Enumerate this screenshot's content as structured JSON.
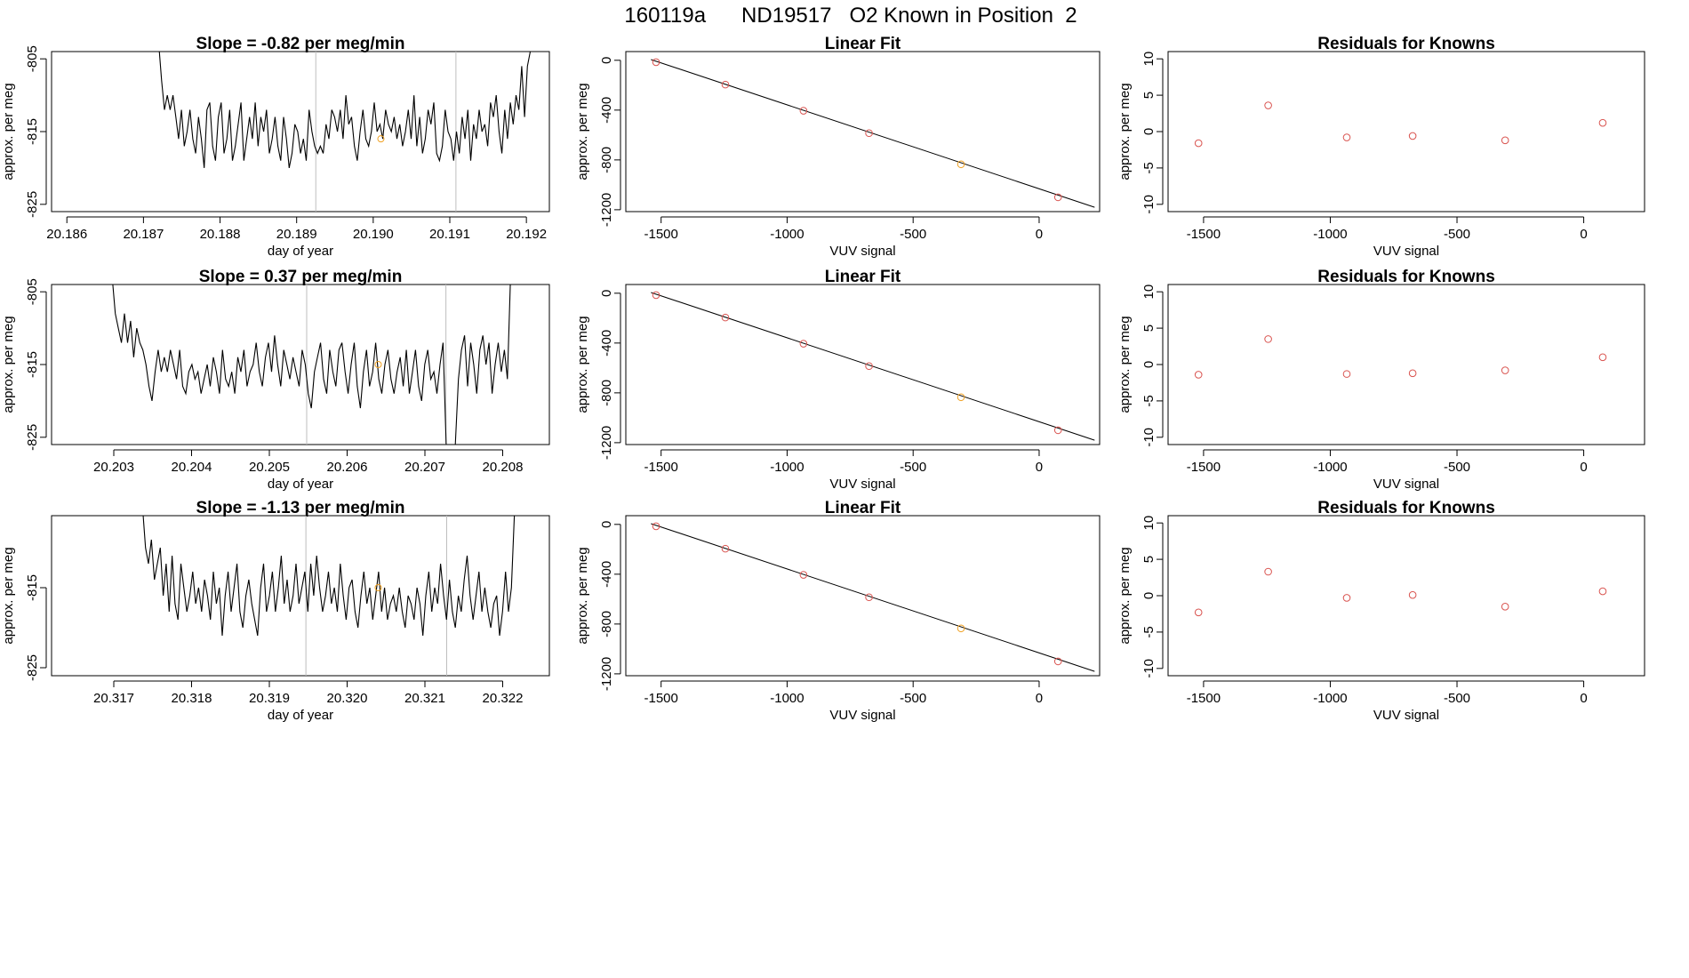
{
  "page_title": "160119a      ND19517   O2 Known in Position  2",
  "colors": {
    "line": "#000000",
    "frame": "#000000",
    "vline": "#bebebe",
    "known_point": "#d9534f",
    "highlight_point": "#f0a020"
  },
  "chart_data": [
    {
      "type": "line",
      "title": "Slope =  -0.82  per meg/min",
      "xlabel": "day of year",
      "ylabel": "approx. per meg",
      "xlim": [
        20.1858,
        20.1923
      ],
      "ylim": [
        -826,
        -804
      ],
      "xticks": [
        "20.186",
        "20.187",
        "20.188",
        "20.189",
        "20.190",
        "20.191",
        "20.192"
      ],
      "yticks": [
        "-805",
        "-815",
        "-825"
      ],
      "vlines": [
        20.18925,
        20.19108
      ],
      "highlight": {
        "x": 20.1901,
        "y": -816
      },
      "series": [
        {
          "x_start": 20.1872,
          "x_end": 20.19205,
          "values": [
            -803,
            -808,
            -812,
            -810,
            -812,
            -810,
            -813,
            -816,
            -812,
            -817,
            -815,
            -812,
            -816,
            -818,
            -813,
            -816,
            -820,
            -812,
            -811,
            -817,
            -819,
            -813,
            -811,
            -818,
            -816,
            -812,
            -819,
            -817,
            -814,
            -811,
            -819,
            -816,
            -813,
            -816,
            -811,
            -817,
            -813,
            -815,
            -812,
            -818,
            -816,
            -813,
            -817,
            -819,
            -813,
            -816,
            -820,
            -818,
            -814,
            -815,
            -818,
            -816,
            -819,
            -812,
            -815,
            -817,
            -818,
            -817,
            -818,
            -814,
            -816,
            -812,
            -813,
            -815,
            -812,
            -816,
            -810,
            -814,
            -813,
            -817,
            -819,
            -815,
            -812,
            -816,
            -817,
            -815,
            -811,
            -815,
            -814,
            -816,
            -812,
            -814,
            -815,
            -813,
            -816,
            -814,
            -817,
            -815,
            -812,
            -816,
            -810,
            -817,
            -813,
            -818,
            -816,
            -812,
            -814,
            -811,
            -818,
            -819,
            -817,
            -812,
            -815,
            -816,
            -819,
            -815,
            -818,
            -813,
            -816,
            -812,
            -819,
            -814,
            -816,
            -812,
            -815,
            -814,
            -817,
            -811,
            -813,
            -810,
            -815,
            -818,
            -812,
            -816,
            -811,
            -814,
            -810,
            -812,
            -806,
            -813,
            -806,
            -804
          ]
        }
      ]
    },
    {
      "type": "scatter",
      "title": "Linear Fit",
      "xlabel": "VUV signal",
      "ylabel": "approx. per meg",
      "xlim": [
        -1640,
        240
      ],
      "ylim": [
        -1215,
        70
      ],
      "xticks": [
        "-1500",
        "-1000",
        "-500",
        "0"
      ],
      "yticks": [
        "0",
        "-400",
        "-800",
        "-1200"
      ],
      "fit_line": {
        "x": [
          -1540,
          220
        ],
        "y": [
          6,
          -1180
        ]
      },
      "points": [
        {
          "x": -1520,
          "y": -15,
          "highlight": false
        },
        {
          "x": -1245,
          "y": -195,
          "highlight": false
        },
        {
          "x": -935,
          "y": -405,
          "highlight": false
        },
        {
          "x": -675,
          "y": -585,
          "highlight": false
        },
        {
          "x": -310,
          "y": -835,
          "highlight": true
        },
        {
          "x": 75,
          "y": -1100,
          "highlight": false
        }
      ]
    },
    {
      "type": "scatter",
      "title": "Residuals for Knowns",
      "xlabel": "VUV signal",
      "ylabel": "approx. per meg",
      "xlim": [
        -1640,
        240
      ],
      "ylim": [
        -11,
        11
      ],
      "xticks": [
        "-1500",
        "-1000",
        "-500",
        "0"
      ],
      "yticks": [
        "10",
        "5",
        "0",
        "-5",
        "-10"
      ],
      "points": [
        {
          "x": -1520,
          "y": -1.6
        },
        {
          "x": -1245,
          "y": 3.6
        },
        {
          "x": -935,
          "y": -0.8
        },
        {
          "x": -675,
          "y": -0.6
        },
        {
          "x": -310,
          "y": -1.2
        },
        {
          "x": 75,
          "y": 1.2
        }
      ]
    },
    {
      "type": "line",
      "title": "Slope =  0.37  per meg/min",
      "xlabel": "day of year",
      "ylabel": "approx. per meg",
      "xlim": [
        20.2022,
        20.2086
      ],
      "ylim": [
        -826,
        -804
      ],
      "xticks": [
        "20.203",
        "20.204",
        "20.205",
        "20.206",
        "20.207",
        "20.208"
      ],
      "yticks": [
        "-805",
        "-815",
        "-825"
      ],
      "vlines": [
        20.20548,
        20.20727
      ],
      "highlight": {
        "x": 20.2064,
        "y": -815
      },
      "series": [
        {
          "x_start": 20.20298,
          "x_end": 20.2081,
          "values": [
            -803,
            -808,
            -810,
            -812,
            -808,
            -812,
            -809,
            -814,
            -810,
            -812,
            -813,
            -815,
            -818,
            -820,
            -816,
            -813,
            -816,
            -814,
            -816,
            -813,
            -815,
            -817,
            -813,
            -818,
            -819,
            -816,
            -815,
            -817,
            -816,
            -819,
            -817,
            -815,
            -818,
            -814,
            -816,
            -819,
            -813,
            -817,
            -818,
            -816,
            -819,
            -814,
            -816,
            -813,
            -818,
            -816,
            -815,
            -812,
            -816,
            -818,
            -814,
            -812,
            -816,
            -811,
            -815,
            -818,
            -813,
            -815,
            -817,
            -814,
            -816,
            -818,
            -813,
            -815,
            -819,
            -821,
            -816,
            -814,
            -812,
            -817,
            -819,
            -813,
            -816,
            -818,
            -813,
            -812,
            -816,
            -819,
            -815,
            -812,
            -818,
            -821,
            -816,
            -813,
            -818,
            -816,
            -812,
            -817,
            -819,
            -815,
            -813,
            -817,
            -819,
            -816,
            -814,
            -818,
            -813,
            -819,
            -816,
            -813,
            -818,
            -820,
            -815,
            -813,
            -817,
            -816,
            -819,
            -815,
            -812,
            -826,
            -826,
            -826,
            -826,
            -817,
            -813,
            -811,
            -818,
            -812,
            -815,
            -819,
            -813,
            -811,
            -815,
            -812,
            -819,
            -815,
            -812,
            -816,
            -813,
            -817,
            -803
          ]
        }
      ]
    },
    {
      "type": "scatter",
      "title": "Linear Fit",
      "xlabel": "VUV signal",
      "ylabel": "approx. per meg",
      "xlim": [
        -1640,
        240
      ],
      "ylim": [
        -1215,
        70
      ],
      "xticks": [
        "-1500",
        "-1000",
        "-500",
        "0"
      ],
      "yticks": [
        "0",
        "-400",
        "-800",
        "-1200"
      ],
      "fit_line": {
        "x": [
          -1540,
          220
        ],
        "y": [
          6,
          -1180
        ]
      },
      "points": [
        {
          "x": -1520,
          "y": -15,
          "highlight": false
        },
        {
          "x": -1245,
          "y": -195,
          "highlight": false
        },
        {
          "x": -935,
          "y": -405,
          "highlight": false
        },
        {
          "x": -675,
          "y": -585,
          "highlight": false
        },
        {
          "x": -310,
          "y": -835,
          "highlight": true
        },
        {
          "x": 75,
          "y": -1100,
          "highlight": false
        }
      ]
    },
    {
      "type": "scatter",
      "title": "Residuals for Knowns",
      "xlabel": "VUV signal",
      "ylabel": "approx. per meg",
      "xlim": [
        -1640,
        240
      ],
      "ylim": [
        -11,
        11
      ],
      "xticks": [
        "-1500",
        "-1000",
        "-500",
        "0"
      ],
      "yticks": [
        "10",
        "5",
        "0",
        "-5",
        "-10"
      ],
      "points": [
        {
          "x": -1520,
          "y": -1.4
        },
        {
          "x": -1245,
          "y": 3.5
        },
        {
          "x": -935,
          "y": -1.3
        },
        {
          "x": -675,
          "y": -1.2
        },
        {
          "x": -310,
          "y": -0.8
        },
        {
          "x": 75,
          "y": 1.0
        }
      ]
    },
    {
      "type": "line",
      "title": "Slope =  -1.13  per meg/min",
      "xlabel": "day of year",
      "ylabel": "approx. per meg",
      "xlim": [
        20.3162,
        20.3226
      ],
      "ylim": [
        -826,
        -806
      ],
      "xticks": [
        "20.317",
        "20.318",
        "20.319",
        "20.320",
        "20.321",
        "20.322"
      ],
      "yticks": [
        "-815",
        "-825"
      ],
      "vlines": [
        20.31947,
        20.32128
      ],
      "highlight": {
        "x": 20.3204,
        "y": -815
      },
      "series": [
        {
          "x_start": 20.31737,
          "x_end": 20.32215,
          "values": [
            -805,
            -810,
            -812,
            -809,
            -814,
            -812,
            -810,
            -816,
            -812,
            -818,
            -811,
            -817,
            -819,
            -812,
            -815,
            -818,
            -816,
            -813,
            -817,
            -815,
            -818,
            -814,
            -816,
            -819,
            -813,
            -817,
            -815,
            -821,
            -816,
            -813,
            -818,
            -815,
            -812,
            -818,
            -820,
            -816,
            -814,
            -817,
            -819,
            -821,
            -815,
            -812,
            -818,
            -816,
            -813,
            -818,
            -815,
            -811,
            -817,
            -814,
            -818,
            -816,
            -812,
            -817,
            -815,
            -813,
            -818,
            -812,
            -816,
            -811,
            -815,
            -818,
            -816,
            -813,
            -817,
            -815,
            -818,
            -812,
            -816,
            -819,
            -815,
            -814,
            -818,
            -820,
            -816,
            -813,
            -817,
            -815,
            -819,
            -816,
            -813,
            -818,
            -815,
            -819,
            -817,
            -816,
            -818,
            -815,
            -818,
            -820,
            -816,
            -817,
            -819,
            -815,
            -817,
            -821,
            -816,
            -813,
            -818,
            -815,
            -817,
            -812,
            -816,
            -819,
            -814,
            -818,
            -820,
            -816,
            -818,
            -814,
            -811,
            -816,
            -819,
            -816,
            -813,
            -818,
            -815,
            -818,
            -820,
            -817,
            -816,
            -821,
            -818,
            -813,
            -818,
            -815,
            -806
          ]
        }
      ]
    },
    {
      "type": "scatter",
      "title": "Linear Fit",
      "xlabel": "VUV signal",
      "ylabel": "approx. per meg",
      "xlim": [
        -1640,
        240
      ],
      "ylim": [
        -1215,
        70
      ],
      "xticks": [
        "-1500",
        "-1000",
        "-500",
        "0"
      ],
      "yticks": [
        "0",
        "-400",
        "-800",
        "-1200"
      ],
      "fit_line": {
        "x": [
          -1540,
          220
        ],
        "y": [
          6,
          -1180
        ]
      },
      "points": [
        {
          "x": -1520,
          "y": -15,
          "highlight": false
        },
        {
          "x": -1245,
          "y": -195,
          "highlight": false
        },
        {
          "x": -935,
          "y": -405,
          "highlight": false
        },
        {
          "x": -675,
          "y": -585,
          "highlight": false
        },
        {
          "x": -310,
          "y": -835,
          "highlight": true
        },
        {
          "x": 75,
          "y": -1100,
          "highlight": false
        }
      ]
    },
    {
      "type": "scatter",
      "title": "Residuals for Knowns",
      "xlabel": "VUV signal",
      "ylabel": "approx. per meg",
      "xlim": [
        -1640,
        240
      ],
      "ylim": [
        -11,
        11
      ],
      "xticks": [
        "-1500",
        "-1000",
        "-500",
        "0"
      ],
      "yticks": [
        "10",
        "5",
        "0",
        "-5",
        "-10"
      ],
      "points": [
        {
          "x": -1520,
          "y": -2.3
        },
        {
          "x": -1245,
          "y": 3.3
        },
        {
          "x": -935,
          "y": -0.3
        },
        {
          "x": -675,
          "y": 0.1
        },
        {
          "x": -310,
          "y": -1.5
        },
        {
          "x": 75,
          "y": 0.6
        }
      ]
    }
  ]
}
